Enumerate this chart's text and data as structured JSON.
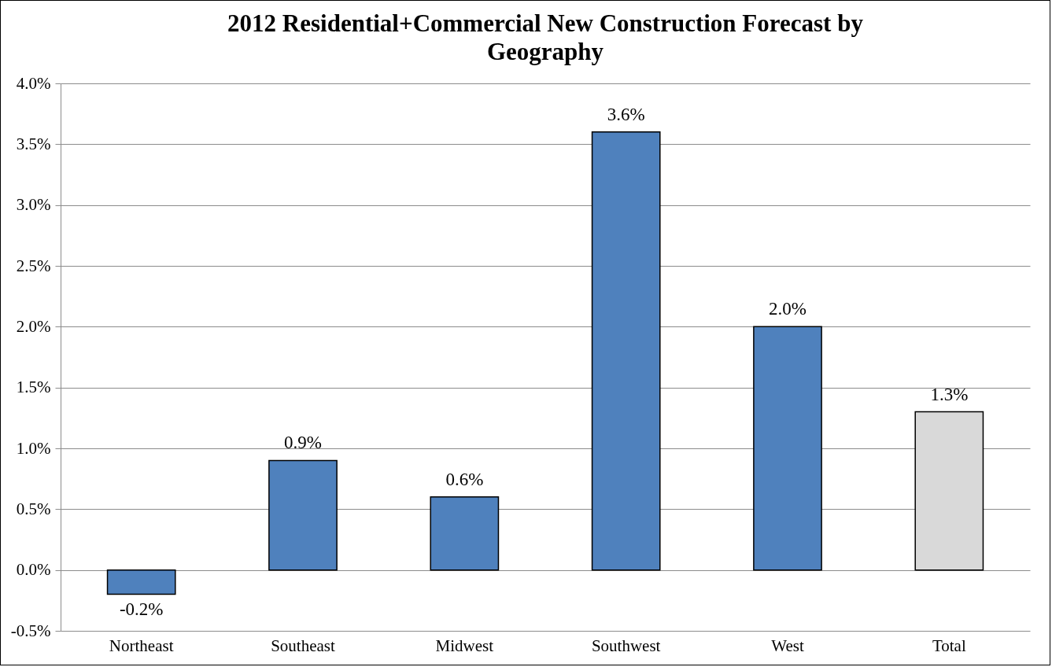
{
  "chart_data": {
    "type": "bar",
    "title": "2012 Residential+Commercial New Construction Forecast by Geography",
    "categories": [
      "Northeast",
      "Southeast",
      "Midwest",
      "Southwest",
      "West",
      "Total"
    ],
    "values": [
      -0.2,
      0.9,
      0.6,
      3.6,
      2.0,
      1.3
    ],
    "value_labels": [
      "-0.2%",
      "0.9%",
      "0.6%",
      "3.6%",
      "2.0%",
      "1.3%"
    ],
    "colors": [
      "#4f81bd",
      "#4f81bd",
      "#4f81bd",
      "#4f81bd",
      "#4f81bd",
      "#d9d9d9"
    ],
    "ylim": [
      -0.5,
      4.0
    ],
    "yticks": [
      {
        "value": -0.5,
        "label": "-0.5%"
      },
      {
        "value": 0,
        "label": "0.0%"
      },
      {
        "value": 0.5,
        "label": "0.5%"
      },
      {
        "value": 1.0,
        "label": "1.0%"
      },
      {
        "value": 1.5,
        "label": "1.5%"
      },
      {
        "value": 2.0,
        "label": "2.0%"
      },
      {
        "value": 2.5,
        "label": "2.5%"
      },
      {
        "value": 3.0,
        "label": "3.0%"
      },
      {
        "value": 3.5,
        "label": "3.5%"
      },
      {
        "value": 4.0,
        "label": "4.0%"
      }
    ],
    "grid": "y"
  }
}
